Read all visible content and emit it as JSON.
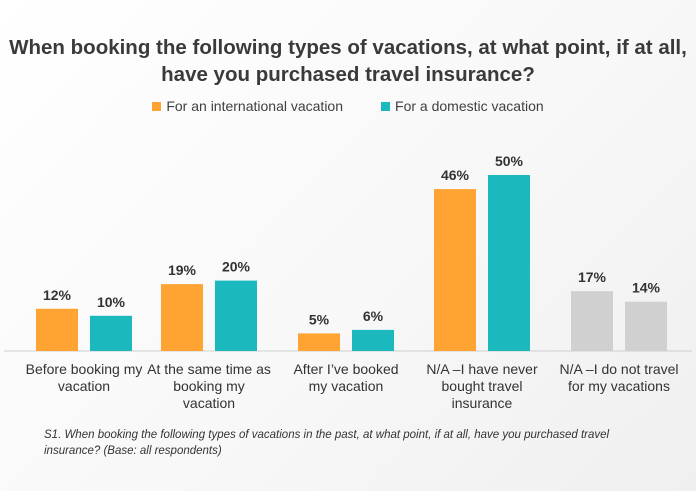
{
  "chart_data": {
    "type": "bar",
    "title": "When booking the following types of vacations, at what point, if at all, have you purchased travel insurance?",
    "categories": [
      "Before booking my vacation",
      "At the same time as booking my vacation",
      "After I've booked my vacation",
      "N/A –I  have never bought travel insurance",
      "N/A –I  do not travel for my vacations"
    ],
    "category_lines": [
      [
        "Before booking my",
        "vacation"
      ],
      [
        "At the same time as",
        "booking my",
        "vacation"
      ],
      [
        "After I’ve booked",
        "my vacation"
      ],
      [
        "N/A –I  have never",
        "bought travel",
        "insurance"
      ],
      [
        "N/A –I  do not travel",
        "for my vacations"
      ]
    ],
    "series": [
      {
        "name": "For an international vacation",
        "values": [
          12,
          19,
          5,
          46,
          17
        ]
      },
      {
        "name": "For a domestic vacation",
        "values": [
          10,
          20,
          6,
          50,
          14
        ]
      }
    ],
    "value_labels": [
      [
        "12%",
        "19%",
        "5%",
        "46%",
        "17%"
      ],
      [
        "10%",
        "20%",
        "6%",
        "50%",
        "14%"
      ]
    ],
    "ylim": [
      0,
      50
    ],
    "grid": false,
    "legend_position": "top-center",
    "colors": {
      "international": "#FFA332",
      "domestic": "#1BB8BD",
      "na_category": "#D0D0D0"
    }
  },
  "footnote": "S1. When booking the following types of vacations in the past, at what point, if at all, have you purchased travel insurance? (Base: all respondents)"
}
